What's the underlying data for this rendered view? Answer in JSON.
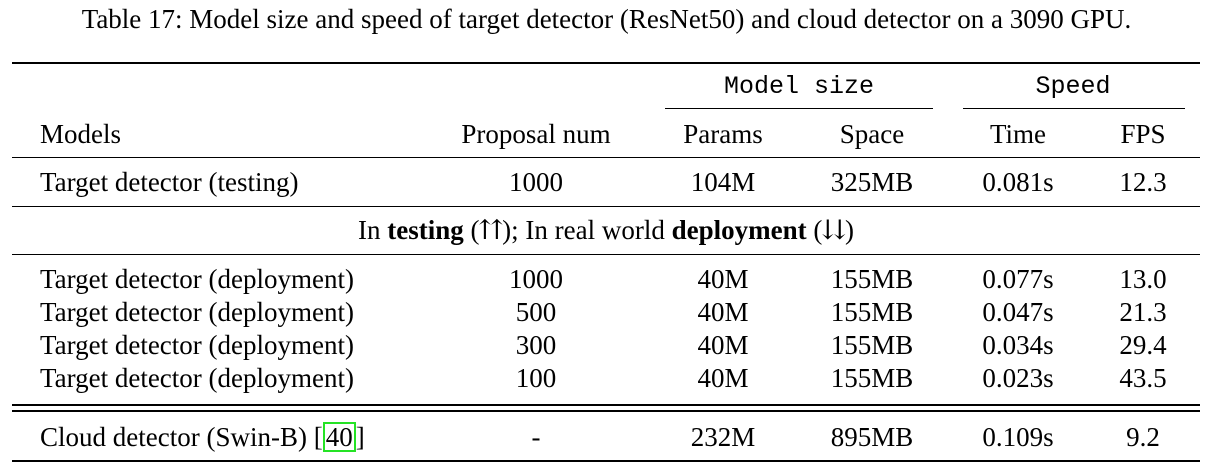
{
  "caption": "Table 17: Model size and speed of target detector (ResNet50) and cloud detector on a 3090 GPU.",
  "group_headers": {
    "model_size": "Model size",
    "speed": "Speed"
  },
  "columns": {
    "models": "Models",
    "proposal": "Proposal num",
    "params": "Params",
    "space": "Space",
    "time": "Time",
    "fps": "FPS"
  },
  "testing_row": {
    "model": "Target detector (testing)",
    "proposal": "1000",
    "params": "104M",
    "space": "325MB",
    "time": "0.081s",
    "fps": "12.3"
  },
  "divider": {
    "in": "In",
    "testing": "testing",
    "testing_arrows": "(⇈); In real world",
    "deployment": "deployment",
    "deployment_arrows": "(⇊)"
  },
  "deployment_rows": [
    {
      "model": "Target detector (deployment)",
      "proposal": "1000",
      "params": "40M",
      "space": "155MB",
      "time": "0.077s",
      "fps": "13.0"
    },
    {
      "model": "Target detector (deployment)",
      "proposal": "500",
      "params": "40M",
      "space": "155MB",
      "time": "0.047s",
      "fps": "21.3"
    },
    {
      "model": "Target detector (deployment)",
      "proposal": "300",
      "params": "40M",
      "space": "155MB",
      "time": "0.034s",
      "fps": "29.4"
    },
    {
      "model": "Target detector (deployment)",
      "proposal": "100",
      "params": "40M",
      "space": "155MB",
      "time": "0.023s",
      "fps": "43.5"
    }
  ],
  "cloud_row": {
    "model_prefix": "Cloud detector (Swin-B) [",
    "cite": "40",
    "model_suffix": "]",
    "proposal": "-",
    "params": "232M",
    "space": "895MB",
    "time": "0.109s",
    "fps": "9.2"
  }
}
